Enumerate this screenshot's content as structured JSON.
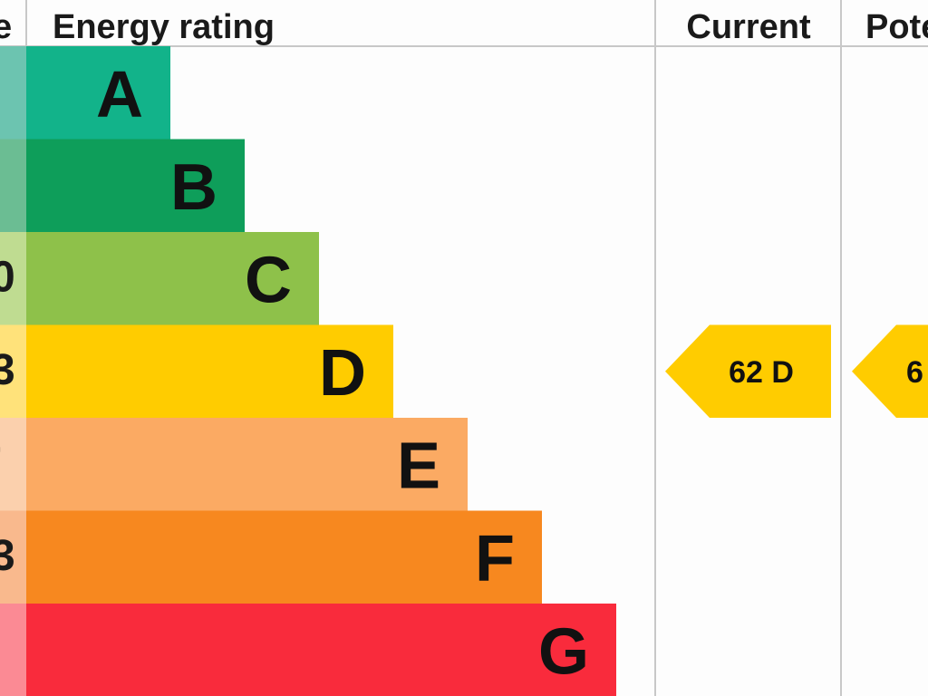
{
  "chart_data": {
    "type": "bar",
    "title": "Energy rating",
    "columns": {
      "score_partial": "e",
      "rating": "Energy rating",
      "current": "Current",
      "potential_partial": "Pote"
    },
    "categories": [
      "A",
      "B",
      "C",
      "D",
      "E",
      "F",
      "G"
    ],
    "values": [
      1,
      2,
      3,
      4,
      5,
      6,
      7
    ],
    "band_colors": [
      "#12b38a",
      "#0e9e5a",
      "#8ec14a",
      "#ffcc00",
      "#fbaa63",
      "#f7881f",
      "#f92b3c"
    ],
    "score_col_colors": [
      "#6cc4b0",
      "#6bbd93",
      "#bfdc91",
      "#ffe27a",
      "#fbd0ad",
      "#f9b98d",
      "#fb8a94"
    ],
    "score_col_marks": [
      "",
      "",
      "0",
      "3",
      "’",
      "3",
      ""
    ],
    "current": {
      "value": 62,
      "band": "D",
      "label": "62  D",
      "color": "#ffcc00"
    },
    "potential": {
      "band": "D",
      "label_partial": "6",
      "color": "#ffcc00"
    }
  }
}
